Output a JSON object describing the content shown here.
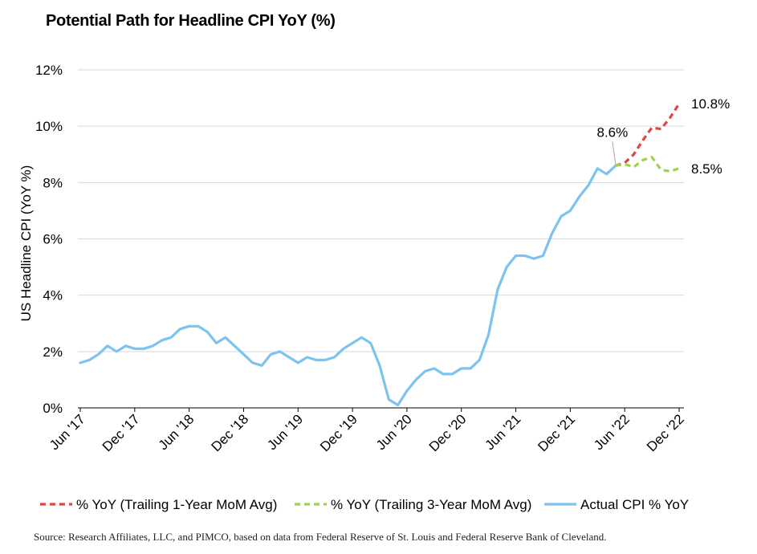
{
  "title": "Potential Path for Headline CPI YoY (%)",
  "source": "Source: Research Affiliates, LLC, and PIMCO, based on data from Federal Reserve of St. Louis and Federal Reserve Bank of Cleveland.",
  "chart_data": {
    "type": "line",
    "ylabel": "US Headline CPI (YoY %)",
    "xlabel": "",
    "ylim": [
      0,
      12
    ],
    "yticks": [
      "0%",
      "2%",
      "4%",
      "6%",
      "8%",
      "10%",
      "12%"
    ],
    "xticks": [
      "Jun '17",
      "Dec '17",
      "Jun '18",
      "Dec '18",
      "Jun '19",
      "Dec '19",
      "Jun '20",
      "Dec '20",
      "Jun '21",
      "Dec '21",
      "Jun '22",
      "Dec '22"
    ],
    "grid": "horizontal",
    "legend_position": "bottom",
    "annotations": [
      {
        "text": "8.6%",
        "series": "Actual CPI % YoY",
        "month": "2022-05",
        "value": 8.6
      },
      {
        "text": "10.8%",
        "series": "% YoY (Trailing 1-Year MoM Avg)",
        "month": "2022-12",
        "value": 10.8
      },
      {
        "text": "8.5%",
        "series": "% YoY (Trailing 3-Year MoM Avg)",
        "month": "2022-12",
        "value": 8.5
      }
    ],
    "series": [
      {
        "name": "% YoY (Trailing 1-Year MoM Avg)",
        "color": "#e04545",
        "style": "dashed",
        "x": [
          "2022-05",
          "2022-06",
          "2022-07",
          "2022-08",
          "2022-09",
          "2022-10",
          "2022-11",
          "2022-12"
        ],
        "values": [
          8.6,
          8.7,
          9.0,
          9.5,
          9.95,
          9.9,
          10.3,
          10.8
        ]
      },
      {
        "name": "% YoY (Trailing 3-Year MoM Avg)",
        "color": "#9bd64a",
        "style": "dashed",
        "x": [
          "2022-05",
          "2022-06",
          "2022-07",
          "2022-08",
          "2022-09",
          "2022-10",
          "2022-11",
          "2022-12"
        ],
        "values": [
          8.6,
          8.65,
          8.55,
          8.8,
          8.9,
          8.45,
          8.4,
          8.5
        ]
      },
      {
        "name": "Actual CPI % YoY",
        "color": "#7cc3ef",
        "style": "solid",
        "x": [
          "2017-06",
          "2017-07",
          "2017-08",
          "2017-09",
          "2017-10",
          "2017-11",
          "2017-12",
          "2018-01",
          "2018-02",
          "2018-03",
          "2018-04",
          "2018-05",
          "2018-06",
          "2018-07",
          "2018-08",
          "2018-09",
          "2018-10",
          "2018-11",
          "2018-12",
          "2019-01",
          "2019-02",
          "2019-03",
          "2019-04",
          "2019-05",
          "2019-06",
          "2019-07",
          "2019-08",
          "2019-09",
          "2019-10",
          "2019-11",
          "2019-12",
          "2020-01",
          "2020-02",
          "2020-03",
          "2020-04",
          "2020-05",
          "2020-06",
          "2020-07",
          "2020-08",
          "2020-09",
          "2020-10",
          "2020-11",
          "2020-12",
          "2021-01",
          "2021-02",
          "2021-03",
          "2021-04",
          "2021-05",
          "2021-06",
          "2021-07",
          "2021-08",
          "2021-09",
          "2021-10",
          "2021-11",
          "2021-12",
          "2022-01",
          "2022-02",
          "2022-03",
          "2022-04",
          "2022-05"
        ],
        "values": [
          1.6,
          1.7,
          1.9,
          2.2,
          2.0,
          2.2,
          2.1,
          2.1,
          2.2,
          2.4,
          2.5,
          2.8,
          2.9,
          2.9,
          2.7,
          2.3,
          2.5,
          2.2,
          1.9,
          1.6,
          1.5,
          1.9,
          2.0,
          1.8,
          1.6,
          1.8,
          1.7,
          1.7,
          1.8,
          2.1,
          2.3,
          2.5,
          2.3,
          1.5,
          0.3,
          0.1,
          0.6,
          1.0,
          1.3,
          1.4,
          1.2,
          1.2,
          1.4,
          1.4,
          1.7,
          2.6,
          4.2,
          5.0,
          5.4,
          5.4,
          5.3,
          5.4,
          6.2,
          6.8,
          7.0,
          7.5,
          7.9,
          8.5,
          8.3,
          8.6
        ]
      }
    ]
  }
}
